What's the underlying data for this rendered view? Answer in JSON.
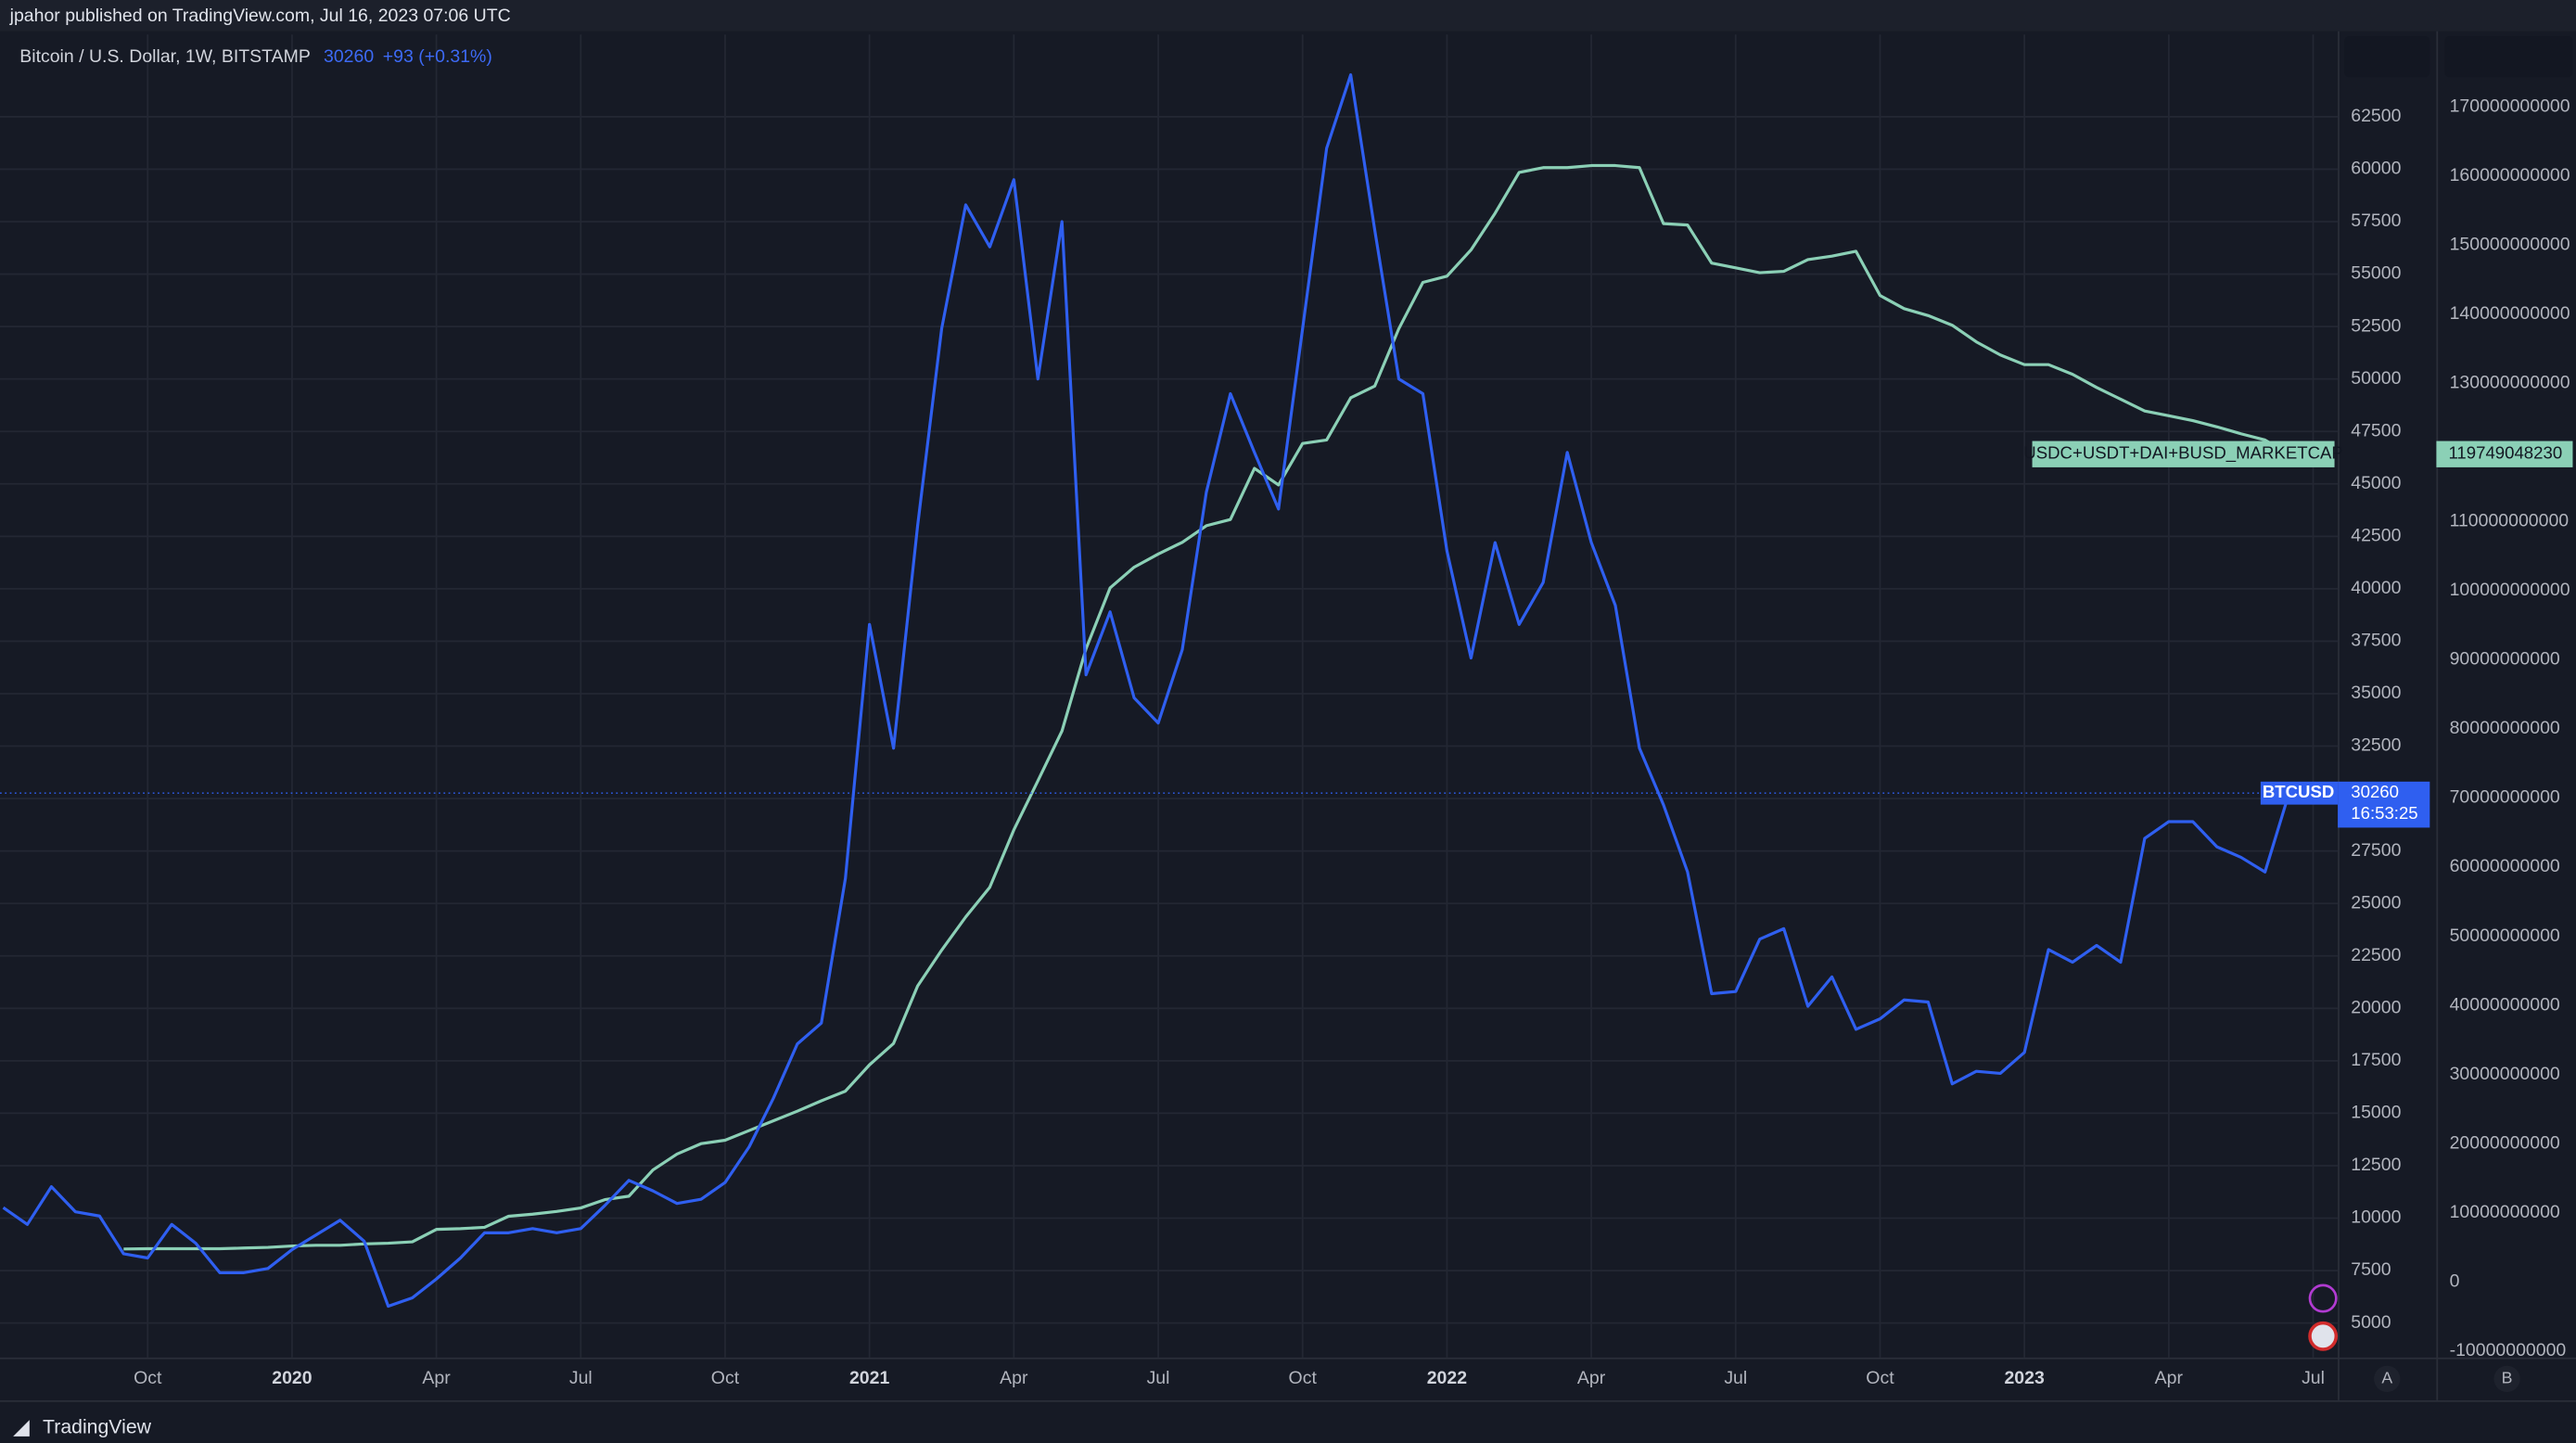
{
  "header": {
    "publisher": "jpahor published on TradingView.com, Jul 16, 2023 07:06 UTC",
    "symbol": "Bitcoin / U.S. Dollar, 1W, BITSTAMP",
    "change": "+93 (+0.31%)",
    "countdown": "16:53:25"
  },
  "footer": {
    "brand": "TradingView",
    "left_button": "A",
    "right_button": "B"
  },
  "chart_data": {
    "type": "line",
    "categories": [
      null,
      null,
      null,
      null,
      null,
      null,
      "Oct",
      null,
      null,
      null,
      null,
      null,
      "2020",
      null,
      null,
      null,
      null,
      null,
      "Apr",
      null,
      null,
      null,
      null,
      null,
      "Jul",
      null,
      null,
      null,
      null,
      null,
      "Oct",
      null,
      null,
      null,
      null,
      null,
      "2021",
      null,
      null,
      null,
      null,
      null,
      "Apr",
      null,
      null,
      null,
      null,
      null,
      "Jul",
      null,
      null,
      null,
      null,
      null,
      "Oct",
      null,
      null,
      null,
      null,
      null,
      "2022",
      null,
      null,
      null,
      null,
      null,
      "Apr",
      null,
      null,
      null,
      null,
      null,
      "Jul",
      null,
      null,
      null,
      null,
      null,
      "Oct",
      null,
      null,
      null,
      null,
      null,
      "2023",
      null,
      null,
      null,
      null,
      null,
      "Apr",
      null,
      null,
      null,
      null,
      null,
      "Jul"
    ],
    "series": [
      {
        "name": "BTCUSD",
        "color": "#2f5ff0",
        "values": [
          10500,
          9700,
          11500,
          10300,
          10100,
          8300,
          8100,
          9700,
          8800,
          7400,
          7400,
          7600,
          8500,
          9200,
          9900,
          8900,
          5800,
          6200,
          7100,
          8100,
          9300,
          9300,
          9500,
          9300,
          9500,
          10600,
          11800,
          11300,
          10700,
          10900,
          11700,
          13400,
          15700,
          18300,
          19300,
          26200,
          38300,
          32400,
          43000,
          52400,
          58300,
          56300,
          59500,
          50000,
          57500,
          35900,
          38900,
          34800,
          33600,
          37100,
          44600,
          49300,
          46500,
          43800,
          52400,
          61000,
          64500,
          57100,
          50000,
          49300,
          41800,
          36700,
          42200,
          38300,
          40300,
          46500,
          42200,
          39200,
          32400,
          29700,
          26500,
          20700,
          20800,
          23300,
          23800,
          20100,
          21500,
          19000,
          19500,
          20400,
          20300,
          16400,
          17000,
          16900,
          17900,
          22800,
          22200,
          23000,
          22200,
          28100,
          28900,
          28900,
          27700,
          27200,
          26500,
          30260,
          null
        ]
      },
      {
        "name": "USDC+USDT+DAI+BUSD_MARKETCAP",
        "color": "#8bd0b6",
        "axis": "y2",
        "values": [
          null,
          null,
          null,
          null,
          null,
          4760000000,
          4800000000,
          4800000000,
          4800000000,
          4800000000,
          4900000000,
          5000000000,
          5200000000,
          5300000000,
          5300000000,
          5500000000,
          5600000000,
          5800000000,
          7600000000,
          7700000000,
          7900000000,
          9500000000,
          9800000000,
          10200000000,
          10700000000,
          11900000000,
          12400000000,
          16200000000,
          18500000000,
          20000000000,
          20500000000,
          21900000000,
          23300000000,
          24700000000,
          26200000000,
          27600000000,
          31400000000,
          34500000000,
          42800000000,
          48000000000,
          52800000000,
          57100000000,
          65400000000,
          72500000000,
          79700000000,
          91600000000,
          100400000000,
          103400000000,
          105300000000,
          107000000000,
          109400000000,
          110300000000,
          117700000000,
          115300000000,
          121300000000,
          121800000000,
          127900000000,
          129600000000,
          137900000000,
          144600000000,
          145500000000,
          149300000000,
          154600000000,
          160500000000,
          161200000000,
          161200000000,
          161500000000,
          161500000000,
          161200000000,
          153100000000,
          152900000000,
          147400000000,
          146700000000,
          146000000000,
          146200000000,
          147900000000,
          148400000000,
          149100000000,
          142700000000,
          140800000000,
          139800000000,
          138400000000,
          136000000000,
          134100000000,
          132700000000,
          132700000000,
          131300000000,
          129400000000,
          127700000000,
          126000000000,
          125300000000,
          124600000000,
          123700000000,
          122700000000,
          121800000000,
          119749048230,
          null
        ]
      }
    ],
    "ylim": [
      3355,
      66420
    ],
    "yticks": [
      5000,
      7500,
      10000,
      12500,
      15000,
      17500,
      20000,
      22500,
      25000,
      27500,
      30000,
      32500,
      35000,
      37500,
      40000,
      42500,
      45000,
      47500,
      50000,
      52500,
      55000,
      57500,
      60000,
      62500
    ],
    "y2lim": [
      -10940000000,
      180460000000
    ],
    "y2ticks": [
      -10000000000,
      0,
      10000000000,
      20000000000,
      30000000000,
      40000000000,
      50000000000,
      60000000000,
      70000000000,
      80000000000,
      90000000000,
      100000000000,
      110000000000,
      120000000000,
      130000000000,
      140000000000,
      150000000000,
      160000000000,
      170000000000
    ],
    "grid": true
  }
}
